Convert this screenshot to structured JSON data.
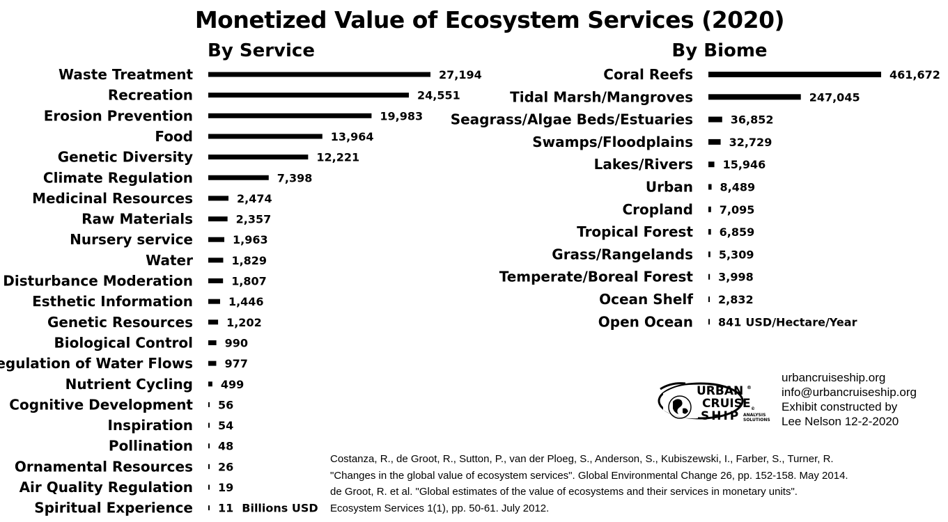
{
  "title": "Monetized Value of Ecosystem Services (2020)",
  "chart_data": [
    {
      "type": "bar",
      "orientation": "horizontal",
      "title": "By Service",
      "unit": "Billions USD",
      "categories": [
        "Waste Treatment",
        "Recreation",
        "Erosion Prevention",
        "Food",
        "Genetic Diversity",
        "Climate Regulation",
        "Medicinal Resources",
        "Raw Materials",
        "Nursery service",
        "Water",
        "Disturbance Moderation",
        "Esthetic Information",
        "Genetic Resources",
        "Biological Control",
        "Regulation of Water Flows",
        "Nutrient Cycling",
        "Cognitive Development",
        "Inspiration",
        "Pollination",
        "Ornamental Resources",
        "Air Quality Regulation",
        "Spiritual Experience"
      ],
      "values": [
        27194,
        24551,
        19983,
        13964,
        12221,
        7398,
        2474,
        2357,
        1963,
        1829,
        1807,
        1446,
        1202,
        990,
        977,
        499,
        56,
        54,
        48,
        26,
        19,
        11
      ],
      "value_labels": [
        "27,194",
        "24,551",
        "19,983",
        "13,964",
        "12,221",
        "7,398",
        "2,474",
        "2,357",
        "1,963",
        "1,829",
        "1,807",
        "1,446",
        "1,202",
        "990",
        "977",
        "499",
        "56",
        "54",
        "48",
        "26",
        "19",
        "11"
      ],
      "xlim": [
        0,
        27194
      ],
      "grid": false,
      "bar_color": "#000000"
    },
    {
      "type": "bar",
      "orientation": "horizontal",
      "title": "By Biome",
      "unit": "USD/Hectare/Year",
      "categories": [
        "Coral Reefs",
        "Tidal Marsh/Mangroves",
        "Seagrass/Algae Beds/Estuaries",
        "Swamps/Floodplains",
        "Lakes/Rivers",
        "Urban",
        "Cropland",
        "Tropical Forest",
        "Grass/Rangelands",
        "Temperate/Boreal Forest",
        "Ocean Shelf",
        "Open Ocean"
      ],
      "values": [
        461672,
        247045,
        36852,
        32729,
        15946,
        8489,
        7095,
        6859,
        5309,
        3998,
        2832,
        841
      ],
      "value_labels": [
        "461,672",
        "247,045",
        "36,852",
        "32,729",
        "15,946",
        "8,489",
        "7,095",
        "6,859",
        "5,309",
        "3,998",
        "2,832",
        "841"
      ],
      "xlim": [
        0,
        461672
      ],
      "grid": false,
      "bar_color": "#000000"
    }
  ],
  "logo": {
    "lines": [
      "URBAN",
      "CRUISE",
      "SHIP"
    ],
    "registered": "®",
    "tagline": [
      "ANALYSIS",
      "SOLUTIONS"
    ],
    "copyright": "©"
  },
  "website": {
    "url": "urbancruiseship.org",
    "email": "info@urbancruiseship.org",
    "credit_line1": "Exhibit constructed by",
    "credit_line2": "Lee Nelson 12-2-2020"
  },
  "citations": [
    "Costanza, R., de Groot, R., Sutton, P., van der Ploeg, S., Anderson, S., Kubiszewski, I., Farber, S., Turner, R.",
    "\"Changes in the global value of ecosystem services\". Global Environmental Change 26, pp. 152-158. May 2014.",
    "de Groot, R. et al. \"Global estimates of the value of ecosystems and their services in monetary units\".",
    "Ecosystem Services 1(1), pp. 50-61. July 2012."
  ]
}
